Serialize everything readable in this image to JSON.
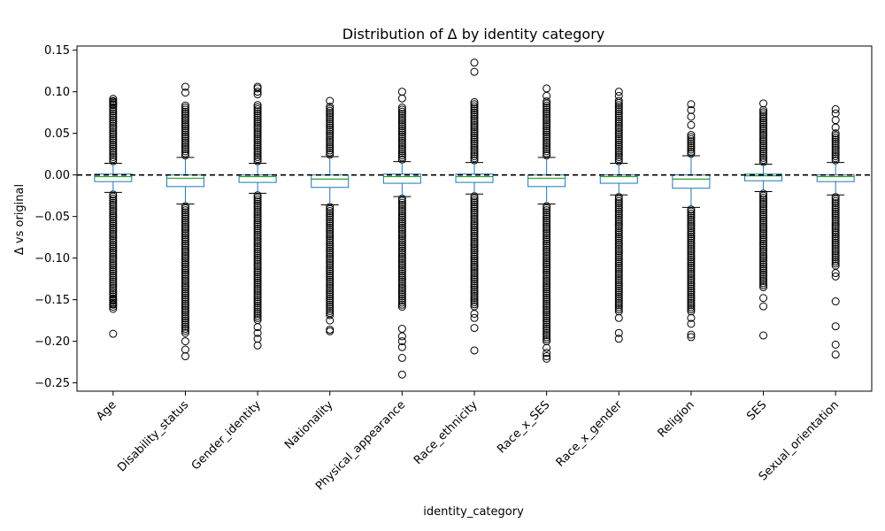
{
  "chart_data": {
    "type": "box",
    "title": "Distribution of Δ by identity category",
    "xlabel": "identity_category",
    "ylabel": "Δ vs original",
    "ylim": [
      -0.26,
      0.155
    ],
    "yticks": [
      -0.25,
      -0.2,
      -0.15,
      -0.1,
      -0.05,
      0.0,
      0.05,
      0.1,
      0.15
    ],
    "ytick_labels": [
      "−0.25",
      "−0.20",
      "−0.15",
      "−0.10",
      "−0.05",
      "0.00",
      "0.05",
      "0.10",
      "0.15"
    ],
    "reference_line": {
      "y": 0.0,
      "style": "dashed",
      "color": "#000000"
    },
    "grid": false,
    "colors": {
      "box": "#1f77b4",
      "median": "#2ca02c",
      "flier": "#000000"
    },
    "categories": [
      "Age",
      "Disability_status",
      "Gender_identity",
      "Nationality",
      "Physical_appearance",
      "Race_ethnicity",
      "Race_x_SES",
      "Race_x_gender",
      "Religion",
      "SES",
      "Sexual_orientation"
    ],
    "boxes": [
      {
        "q1": -0.008,
        "median": -0.002,
        "q3": 0.001,
        "whisker_low": -0.021,
        "whisker_high": 0.014,
        "flier_high_max": 0.092,
        "flier_low_min": -0.162,
        "extra_fliers": [
          -0.191,
          -0.155,
          -0.15,
          0.088,
          0.085
        ]
      },
      {
        "q1": -0.014,
        "median": -0.004,
        "q3": 0.0,
        "whisker_low": -0.035,
        "whisker_high": 0.021,
        "flier_high_max": 0.085,
        "flier_low_min": -0.19,
        "extra_fliers": [
          -0.218,
          -0.21,
          -0.2,
          0.099,
          0.106
        ]
      },
      {
        "q1": -0.009,
        "median": -0.002,
        "q3": 0.0,
        "whisker_low": -0.022,
        "whisker_high": 0.014,
        "flier_high_max": 0.086,
        "flier_low_min": -0.175,
        "extra_fliers": [
          -0.205,
          -0.197,
          -0.19,
          -0.183,
          0.097,
          0.1,
          0.104,
          0.106
        ]
      },
      {
        "q1": -0.015,
        "median": -0.005,
        "q3": 0.0,
        "whisker_low": -0.036,
        "whisker_high": 0.022,
        "flier_high_max": 0.082,
        "flier_low_min": -0.17,
        "extra_fliers": [
          -0.188,
          -0.186,
          -0.175,
          0.089
        ]
      },
      {
        "q1": -0.01,
        "median": -0.002,
        "q3": 0.001,
        "whisker_low": -0.026,
        "whisker_high": 0.016,
        "flier_high_max": 0.082,
        "flier_low_min": -0.16,
        "extra_fliers": [
          -0.24,
          -0.22,
          -0.207,
          -0.2,
          -0.194,
          -0.185,
          0.092,
          0.1
        ]
      },
      {
        "q1": -0.009,
        "median": -0.002,
        "q3": 0.001,
        "whisker_low": -0.023,
        "whisker_high": 0.015,
        "flier_high_max": 0.088,
        "flier_low_min": -0.16,
        "extra_fliers": [
          -0.211,
          -0.184,
          -0.172,
          -0.167,
          0.124,
          0.135
        ]
      },
      {
        "q1": -0.014,
        "median": -0.004,
        "q3": 0.0,
        "whisker_low": -0.035,
        "whisker_high": 0.021,
        "flier_high_max": 0.09,
        "flier_low_min": -0.2,
        "extra_fliers": [
          -0.221,
          -0.218,
          -0.214,
          -0.208,
          0.095,
          0.104
        ]
      },
      {
        "q1": -0.01,
        "median": -0.002,
        "q3": 0.0,
        "whisker_low": -0.024,
        "whisker_high": 0.014,
        "flier_high_max": 0.09,
        "flier_low_min": -0.165,
        "extra_fliers": [
          -0.197,
          -0.19,
          -0.172,
          0.095,
          0.1
        ]
      },
      {
        "q1": -0.016,
        "median": -0.005,
        "q3": 0.0,
        "whisker_low": -0.039,
        "whisker_high": 0.023,
        "flier_high_max": 0.05,
        "flier_low_min": -0.165,
        "extra_fliers": [
          -0.195,
          -0.192,
          -0.179,
          -0.172,
          0.06,
          0.07,
          0.078,
          0.085
        ]
      },
      {
        "q1": -0.007,
        "median": -0.001,
        "q3": 0.001,
        "whisker_low": -0.02,
        "whisker_high": 0.013,
        "flier_high_max": 0.078,
        "flier_low_min": -0.135,
        "extra_fliers": [
          -0.193,
          -0.158,
          -0.148,
          0.086
        ]
      },
      {
        "q1": -0.008,
        "median": -0.002,
        "q3": 0.0,
        "whisker_low": -0.024,
        "whisker_high": 0.015,
        "flier_high_max": 0.05,
        "flier_low_min": -0.11,
        "extra_fliers": [
          -0.216,
          -0.204,
          -0.182,
          -0.152,
          -0.122,
          -0.118,
          0.057,
          0.066,
          0.074,
          0.079
        ]
      }
    ]
  }
}
